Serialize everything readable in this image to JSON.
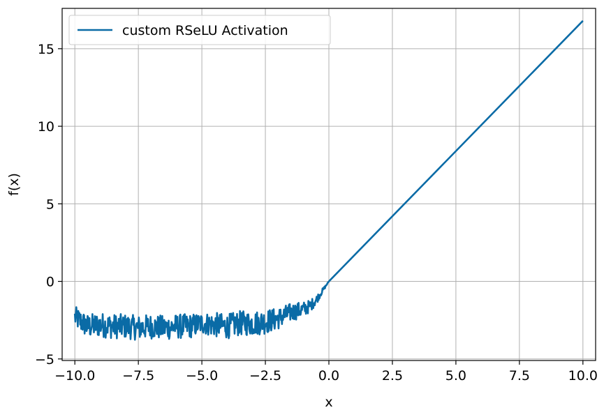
{
  "chart_data": {
    "type": "line",
    "xlabel": "x",
    "ylabel": "f(x)",
    "xlim": [
      -10.5,
      10.5
    ],
    "ylim": [
      -5.1,
      17.6
    ],
    "xticks": [
      -10.0,
      -7.5,
      -5.0,
      -2.5,
      0.0,
      2.5,
      5.0,
      7.5,
      10.0
    ],
    "xtick_labels": [
      "−10.0",
      "−7.5",
      "−5.0",
      "−2.5",
      "0.0",
      "2.5",
      "5.0",
      "7.5",
      "10.0"
    ],
    "yticks": [
      -5,
      0,
      5,
      10,
      15
    ],
    "ytick_labels": [
      "−5",
      "0",
      "5",
      "10",
      "15"
    ],
    "grid": true,
    "legend_position": "upper-left",
    "series": [
      {
        "name": "custom RSeLU Activation",
        "color": "#0a6ba6",
        "x": [
          -10.0,
          -9.5,
          -9.0,
          -8.5,
          -8.0,
          -7.5,
          -7.0,
          -6.5,
          -6.0,
          -5.5,
          -5.0,
          -4.5,
          -4.0,
          -3.5,
          -3.0,
          -2.5,
          -2.0,
          -1.5,
          -1.0,
          -0.75,
          -0.5,
          -0.25,
          0.0,
          10.0
        ],
        "y": [
          -2.3,
          -2.9,
          -2.8,
          -2.9,
          -2.9,
          -3.0,
          -2.9,
          -3.0,
          -2.9,
          -2.9,
          -2.7,
          -2.8,
          -2.9,
          -2.7,
          -2.7,
          -2.6,
          -2.4,
          -2.0,
          -1.8,
          -1.6,
          -1.2,
          -0.6,
          0.0,
          16.8
        ],
        "noise_amplitude": [
          0.7,
          0.8,
          0.8,
          0.8,
          0.8,
          0.8,
          0.8,
          0.8,
          0.8,
          0.8,
          0.7,
          0.8,
          0.8,
          0.8,
          0.8,
          0.8,
          0.7,
          0.6,
          0.5,
          0.4,
          0.3,
          0.15,
          0.0,
          0.0
        ]
      }
    ]
  }
}
